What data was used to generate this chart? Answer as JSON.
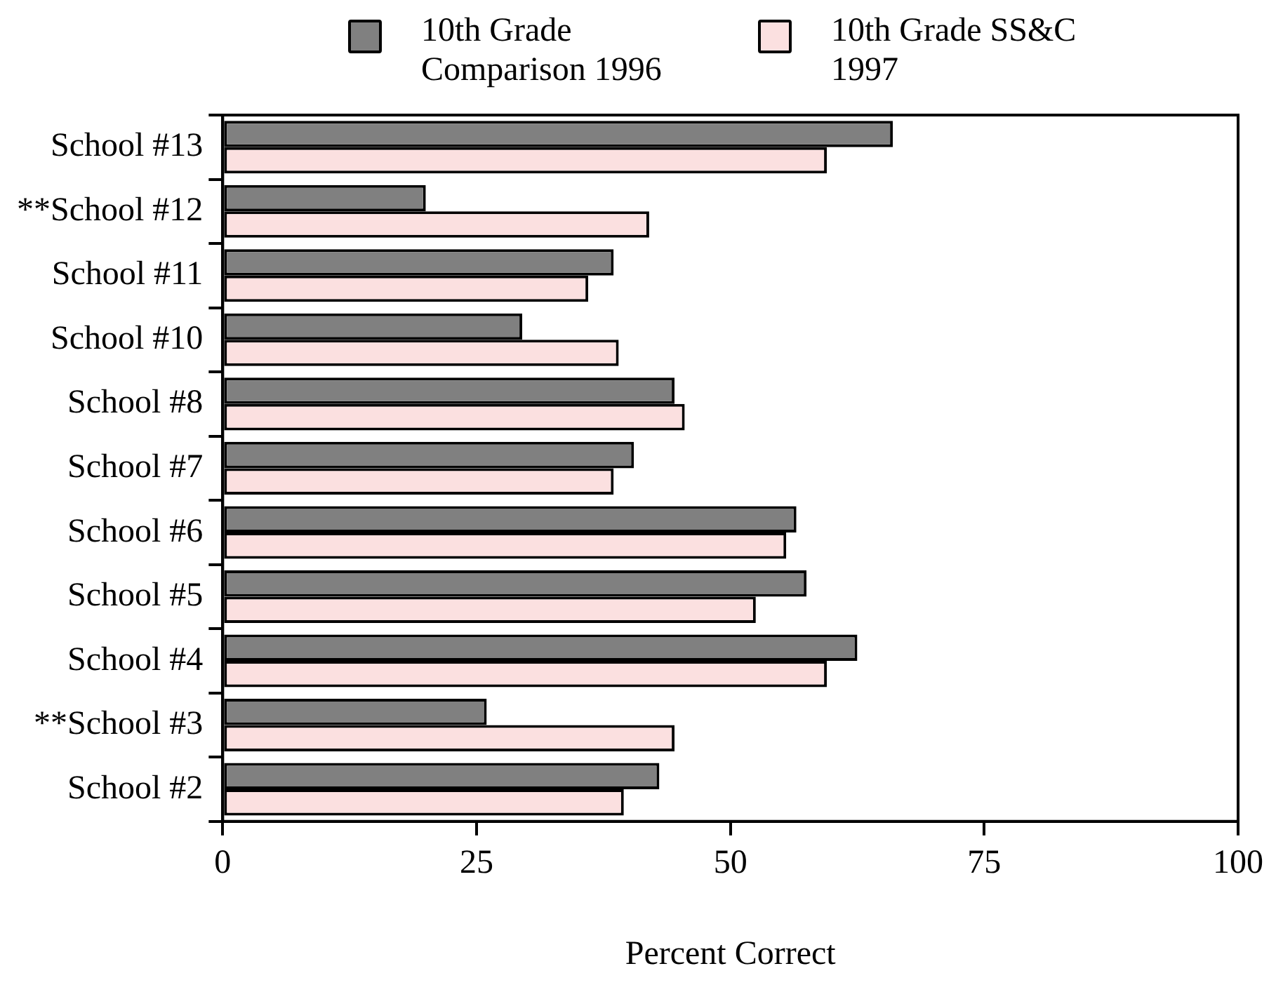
{
  "chart_data": {
    "type": "bar",
    "orientation": "horizontal",
    "xlabel": "Percent Correct",
    "categories": [
      "School #13",
      "**School #12",
      "School #11",
      "School #10",
      "School #8",
      "School #7",
      "School #6",
      "School #5",
      "School #4",
      "**School #3",
      "School #2"
    ],
    "series": [
      {
        "name": "10th Grade Comparison 1996",
        "color": "#808080",
        "values": [
          66,
          20,
          38.5,
          29.5,
          44.5,
          40.5,
          56.5,
          57.5,
          62.5,
          26,
          43
        ]
      },
      {
        "name": "10th Grade SS&C 1997",
        "color": "#fbe0e0",
        "values": [
          59.5,
          42,
          36,
          39,
          45.5,
          38.5,
          55.5,
          52.5,
          59.5,
          44.5,
          39.5
        ]
      }
    ],
    "xlim": [
      0,
      100
    ],
    "xticks": [
      0,
      25,
      50,
      75,
      100
    ],
    "grid": false,
    "legend": "top"
  }
}
